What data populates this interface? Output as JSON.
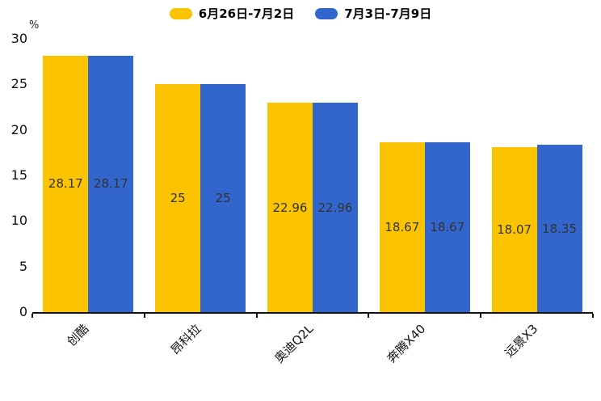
{
  "chart_data": {
    "type": "bar",
    "title": "",
    "categories": [
      "创酷",
      "昂科拉",
      "奥迪Q2L",
      "奔腾X40",
      "远景X3"
    ],
    "series": [
      {
        "name": "6月26日-7月2日",
        "color": "#FCC400",
        "values": [
          28.17,
          25,
          22.96,
          18.67,
          18.07
        ]
      },
      {
        "name": "7月3日-7月9日",
        "color": "#3366CC",
        "values": [
          28.17,
          25,
          22.96,
          18.67,
          18.35
        ]
      }
    ],
    "xlabel": "",
    "ylabel": "%",
    "ylim": [
      0,
      30
    ],
    "yticks": [
      0,
      5,
      10,
      15,
      20,
      25,
      30
    ],
    "legend_position": "top",
    "grid": false,
    "bar_value_labels": true,
    "value_label_color": "#333333",
    "axis_color": "#111111",
    "background_color": "#ffffff"
  }
}
